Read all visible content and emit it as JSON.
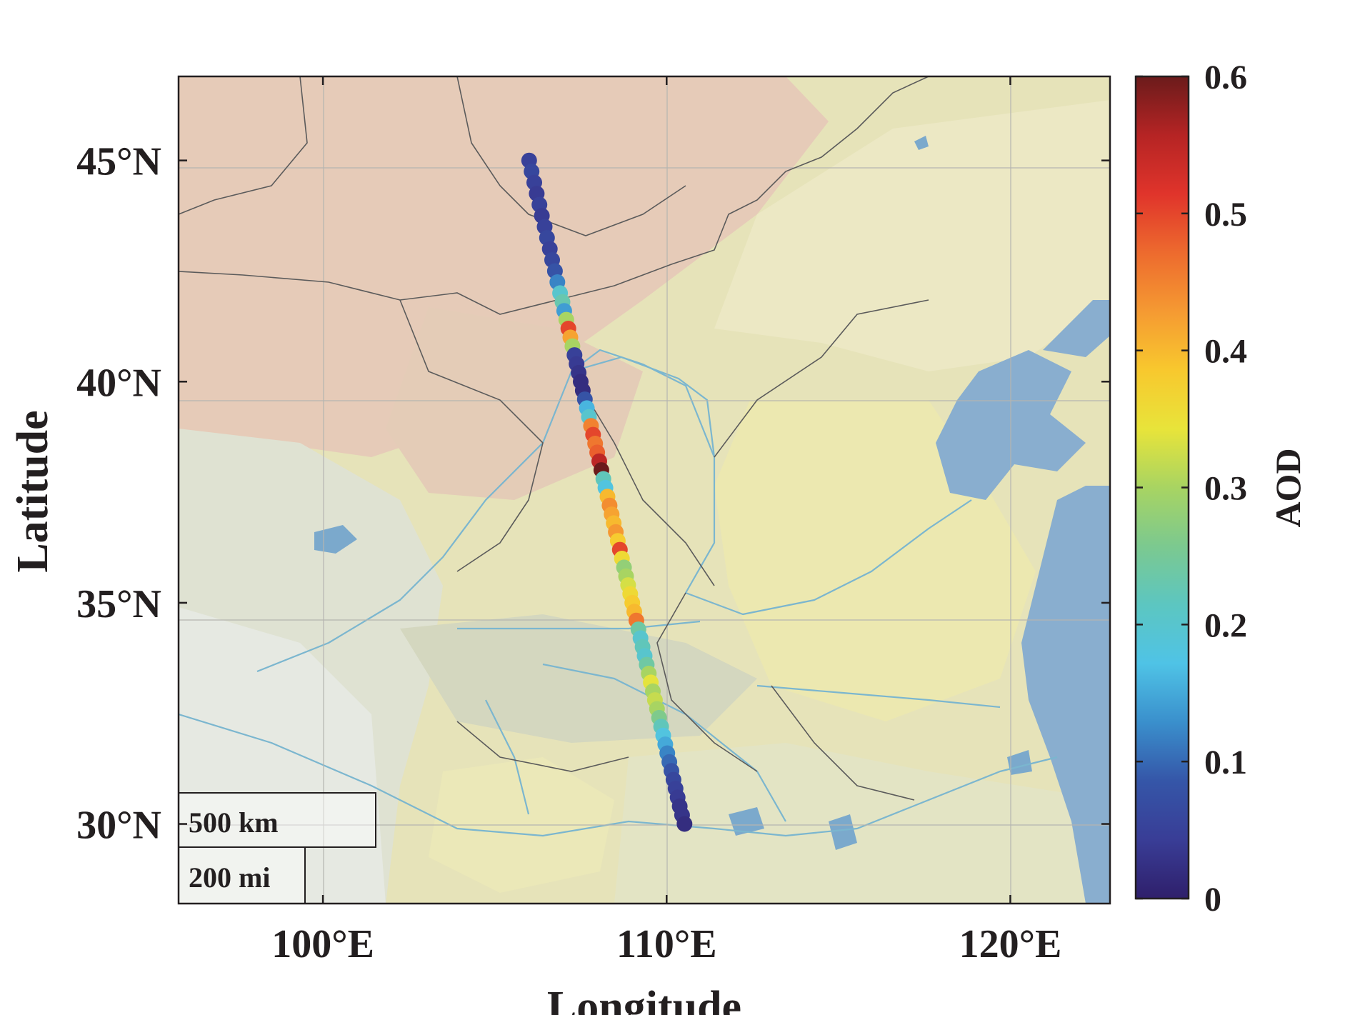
{
  "map": {
    "extent": {
      "lon_min": 95.8,
      "lon_max": 122.9,
      "lat_min": 28.2,
      "lat_max": 46.9
    },
    "x_ticks": [
      {
        "lon": 100,
        "label": "100°E"
      },
      {
        "lon": 110,
        "label": "110°E"
      },
      {
        "lon": 120,
        "label": "120°E"
      }
    ],
    "y_ticks": [
      {
        "lat": 45,
        "label": "45°N"
      },
      {
        "lat": 40,
        "label": "40°N"
      },
      {
        "lat": 35,
        "label": "35°N"
      },
      {
        "lat": 30,
        "label": "30°N"
      }
    ],
    "xlabel": "Longitude",
    "ylabel": "Latitude",
    "scale_bar": {
      "km_label": "500 km",
      "mi_label": "200 mi"
    },
    "colors": {
      "desert": "#e6c8b3",
      "plain": "#eae9b4",
      "mountain": "#d9dcc6",
      "sea": "#89aecf",
      "river": "#7bb6cf",
      "border": "#5b5b5b"
    }
  },
  "colorbar": {
    "label": "AOD",
    "min": 0,
    "max": 0.6,
    "ticks": [
      "0",
      "0.1",
      "0.2",
      "0.3",
      "0.4",
      "0.5",
      "0.6"
    ],
    "colormap": [
      "#2f1f6b",
      "#393d96",
      "#3556a8",
      "#3a8fcc",
      "#4fc3e6",
      "#5cc6c1",
      "#7cc98f",
      "#a8d462",
      "#e8e43a",
      "#f8c82e",
      "#f59a32",
      "#ed6a2e",
      "#e0342b",
      "#b52424",
      "#6b1b1b"
    ]
  },
  "track": {
    "name": "AOD",
    "points": [
      {
        "lon": 106.0,
        "lat": 45.0,
        "aod": 0.05
      },
      {
        "lon": 106.07,
        "lat": 44.75,
        "aod": 0.06
      },
      {
        "lon": 106.15,
        "lat": 44.5,
        "aod": 0.05
      },
      {
        "lon": 106.22,
        "lat": 44.25,
        "aod": 0.04
      },
      {
        "lon": 106.3,
        "lat": 44.0,
        "aod": 0.05
      },
      {
        "lon": 106.37,
        "lat": 43.75,
        "aod": 0.04
      },
      {
        "lon": 106.45,
        "lat": 43.5,
        "aod": 0.05
      },
      {
        "lon": 106.52,
        "lat": 43.25,
        "aod": 0.06
      },
      {
        "lon": 106.6,
        "lat": 43.0,
        "aod": 0.05
      },
      {
        "lon": 106.67,
        "lat": 42.75,
        "aod": 0.06
      },
      {
        "lon": 106.75,
        "lat": 42.5,
        "aod": 0.08
      },
      {
        "lon": 106.82,
        "lat": 42.25,
        "aod": 0.12
      },
      {
        "lon": 106.9,
        "lat": 42.0,
        "aod": 0.2
      },
      {
        "lon": 106.97,
        "lat": 41.8,
        "aod": 0.23
      },
      {
        "lon": 107.02,
        "lat": 41.6,
        "aod": 0.14
      },
      {
        "lon": 107.08,
        "lat": 41.4,
        "aod": 0.3
      },
      {
        "lon": 107.14,
        "lat": 41.2,
        "aod": 0.5
      },
      {
        "lon": 107.2,
        "lat": 41.0,
        "aod": 0.42
      },
      {
        "lon": 107.26,
        "lat": 40.8,
        "aod": 0.3
      },
      {
        "lon": 107.32,
        "lat": 40.6,
        "aod": 0.05
      },
      {
        "lon": 107.38,
        "lat": 40.4,
        "aod": 0.04
      },
      {
        "lon": 107.44,
        "lat": 40.2,
        "aod": 0.03
      },
      {
        "lon": 107.5,
        "lat": 40.0,
        "aod": 0.02
      },
      {
        "lon": 107.56,
        "lat": 39.8,
        "aod": 0.02
      },
      {
        "lon": 107.62,
        "lat": 39.6,
        "aod": 0.08
      },
      {
        "lon": 107.68,
        "lat": 39.4,
        "aod": 0.16
      },
      {
        "lon": 107.74,
        "lat": 39.2,
        "aod": 0.2
      },
      {
        "lon": 107.8,
        "lat": 39.0,
        "aod": 0.45
      },
      {
        "lon": 107.86,
        "lat": 38.8,
        "aod": 0.5
      },
      {
        "lon": 107.92,
        "lat": 38.6,
        "aod": 0.46
      },
      {
        "lon": 107.98,
        "lat": 38.4,
        "aod": 0.48
      },
      {
        "lon": 108.04,
        "lat": 38.2,
        "aod": 0.55
      },
      {
        "lon": 108.1,
        "lat": 38.0,
        "aod": 0.6
      },
      {
        "lon": 108.16,
        "lat": 37.8,
        "aod": 0.22
      },
      {
        "lon": 108.22,
        "lat": 37.6,
        "aod": 0.18
      },
      {
        "lon": 108.28,
        "lat": 37.4,
        "aod": 0.4
      },
      {
        "lon": 108.34,
        "lat": 37.2,
        "aod": 0.44
      },
      {
        "lon": 108.4,
        "lat": 37.0,
        "aod": 0.42
      },
      {
        "lon": 108.46,
        "lat": 36.8,
        "aod": 0.4
      },
      {
        "lon": 108.52,
        "lat": 36.6,
        "aod": 0.43
      },
      {
        "lon": 108.58,
        "lat": 36.4,
        "aod": 0.38
      },
      {
        "lon": 108.64,
        "lat": 36.2,
        "aod": 0.5
      },
      {
        "lon": 108.7,
        "lat": 36.0,
        "aod": 0.36
      },
      {
        "lon": 108.76,
        "lat": 35.8,
        "aod": 0.28
      },
      {
        "lon": 108.82,
        "lat": 35.6,
        "aod": 0.3
      },
      {
        "lon": 108.88,
        "lat": 35.4,
        "aod": 0.33
      },
      {
        "lon": 108.94,
        "lat": 35.2,
        "aod": 0.36
      },
      {
        "lon": 109.0,
        "lat": 35.0,
        "aod": 0.38
      },
      {
        "lon": 109.06,
        "lat": 34.8,
        "aod": 0.4
      },
      {
        "lon": 109.12,
        "lat": 34.6,
        "aod": 0.46
      },
      {
        "lon": 109.18,
        "lat": 34.4,
        "aod": 0.24
      },
      {
        "lon": 109.24,
        "lat": 34.2,
        "aod": 0.2
      },
      {
        "lon": 109.3,
        "lat": 34.0,
        "aod": 0.22
      },
      {
        "lon": 109.36,
        "lat": 33.8,
        "aod": 0.2
      },
      {
        "lon": 109.42,
        "lat": 33.6,
        "aod": 0.24
      },
      {
        "lon": 109.48,
        "lat": 33.4,
        "aod": 0.3
      },
      {
        "lon": 109.54,
        "lat": 33.2,
        "aod": 0.34
      },
      {
        "lon": 109.6,
        "lat": 33.0,
        "aod": 0.3
      },
      {
        "lon": 109.66,
        "lat": 32.8,
        "aod": 0.32
      },
      {
        "lon": 109.72,
        "lat": 32.6,
        "aod": 0.3
      },
      {
        "lon": 109.78,
        "lat": 32.4,
        "aod": 0.26
      },
      {
        "lon": 109.84,
        "lat": 32.2,
        "aod": 0.22
      },
      {
        "lon": 109.9,
        "lat": 32.0,
        "aod": 0.18
      },
      {
        "lon": 109.96,
        "lat": 31.8,
        "aod": 0.15
      },
      {
        "lon": 110.02,
        "lat": 31.6,
        "aod": 0.12
      },
      {
        "lon": 110.08,
        "lat": 31.4,
        "aod": 0.1
      },
      {
        "lon": 110.14,
        "lat": 31.2,
        "aod": 0.08
      },
      {
        "lon": 110.2,
        "lat": 31.0,
        "aod": 0.06
      },
      {
        "lon": 110.26,
        "lat": 30.8,
        "aod": 0.05
      },
      {
        "lon": 110.32,
        "lat": 30.6,
        "aod": 0.04
      },
      {
        "lon": 110.38,
        "lat": 30.4,
        "aod": 0.03
      },
      {
        "lon": 110.45,
        "lat": 30.2,
        "aod": 0.03
      },
      {
        "lon": 110.52,
        "lat": 30.0,
        "aod": 0.02
      }
    ]
  }
}
